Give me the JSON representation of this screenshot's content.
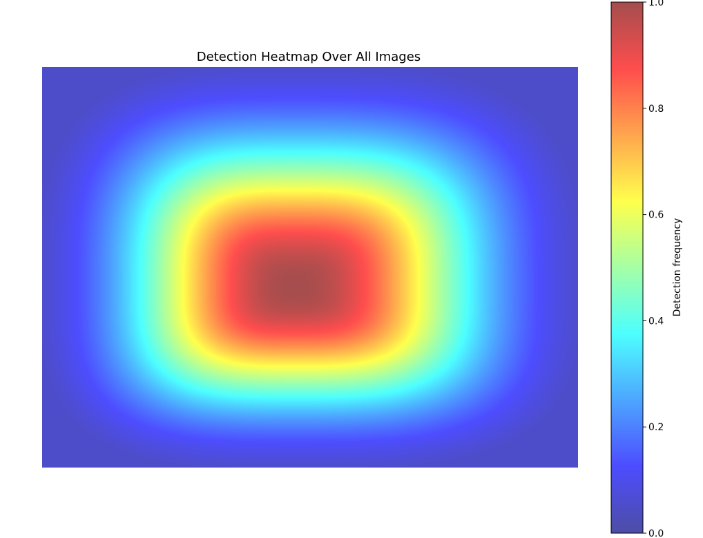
{
  "chart_data": {
    "type": "heatmap",
    "title": "Detection Heatmap Over All Images",
    "xlabel": "",
    "ylabel": "",
    "axes_visible": false,
    "colormap": "jet",
    "alpha": 0.7,
    "grid": false,
    "pattern": "smooth rounded-rectangular peak centered slightly left of and above the middle, decaying toward all edges",
    "peak_value": 1.0,
    "edge_value": 0.05,
    "colorbar": {
      "label": "Detection frequency",
      "ticks": [
        "0.0",
        "0.2",
        "0.4",
        "0.6",
        "0.8",
        "1.0"
      ],
      "tick_values": [
        0.0,
        0.2,
        0.4,
        0.6,
        0.8,
        1.0
      ],
      "range": [
        0.0,
        1.0
      ],
      "placement": "right"
    }
  }
}
